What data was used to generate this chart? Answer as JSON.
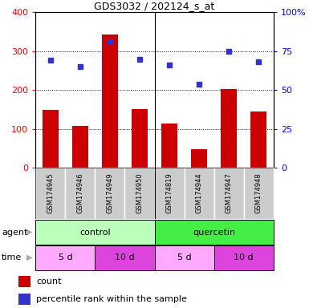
{
  "title": "GDS3032 / 202124_s_at",
  "samples": [
    "GSM174945",
    "GSM174946",
    "GSM174949",
    "GSM174950",
    "GSM174819",
    "GSM174944",
    "GSM174947",
    "GSM174948"
  ],
  "counts": [
    150,
    108,
    342,
    152,
    113,
    48,
    202,
    145
  ],
  "percentile_ranks": [
    69,
    65,
    81,
    70,
    66,
    54,
    75,
    68
  ],
  "ylim_left": [
    0,
    400
  ],
  "ylim_right": [
    0,
    100
  ],
  "yticks_left": [
    0,
    100,
    200,
    300,
    400
  ],
  "yticks_right": [
    0,
    25,
    50,
    75,
    100
  ],
  "ytick_labels_right": [
    "0",
    "25",
    "50",
    "75",
    "100%"
  ],
  "grid_values": [
    100,
    200,
    300
  ],
  "bar_color": "#cc0000",
  "dot_color": "#3333cc",
  "agent_groups": [
    {
      "label": "control",
      "start": 0,
      "end": 4,
      "color": "#bbffbb"
    },
    {
      "label": "quercetin",
      "start": 4,
      "end": 8,
      "color": "#44ee44"
    }
  ],
  "time_groups": [
    {
      "label": "5 d",
      "start": 0,
      "end": 2,
      "color": "#ffaaff"
    },
    {
      "label": "10 d",
      "start": 2,
      "end": 4,
      "color": "#dd44dd"
    },
    {
      "label": "5 d",
      "start": 4,
      "end": 6,
      "color": "#ffaaff"
    },
    {
      "label": "10 d",
      "start": 6,
      "end": 8,
      "color": "#dd44dd"
    }
  ],
  "sample_bg_color": "#cccccc",
  "legend_count_color": "#cc0000",
  "legend_dot_color": "#3333cc",
  "agent_label": "agent",
  "time_label": "time",
  "arrow_color": "#aaaaaa",
  "title_fontsize": 9,
  "axis_fontsize": 8,
  "sample_fontsize": 6,
  "legend_fontsize": 8
}
